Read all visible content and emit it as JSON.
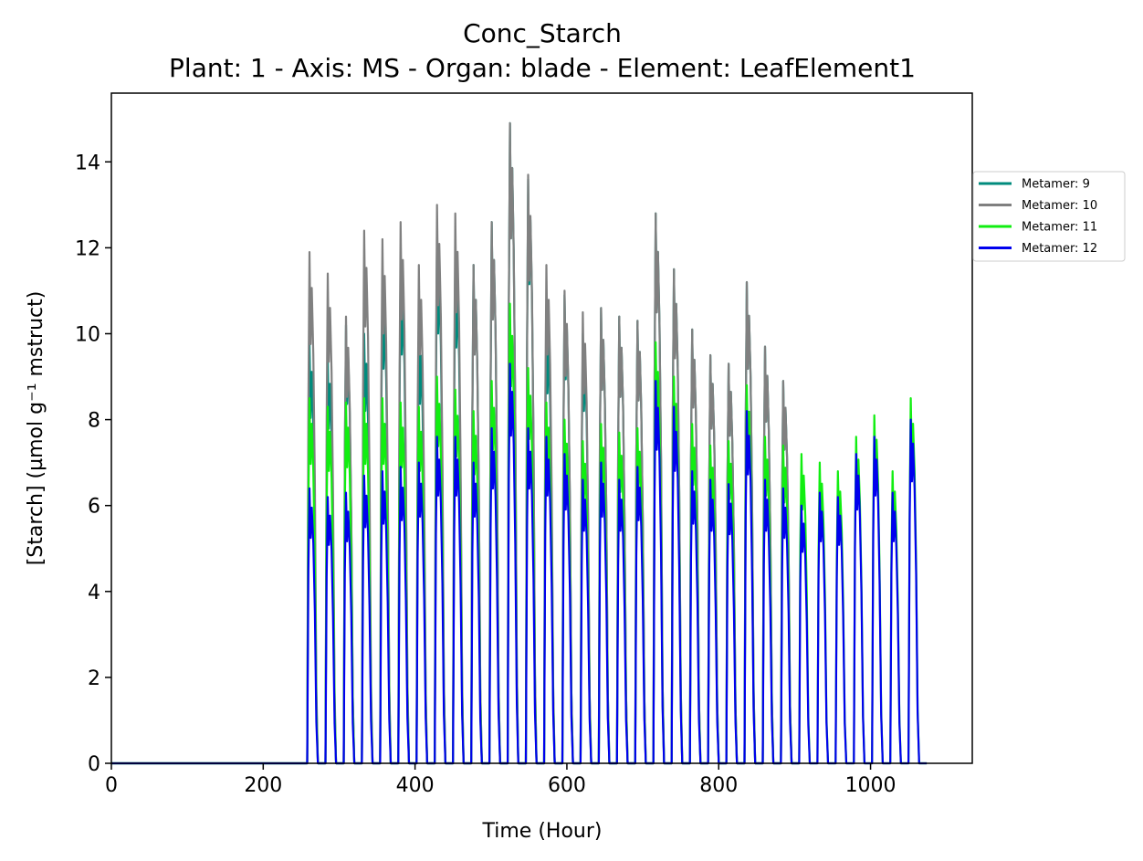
{
  "chart_data": {
    "type": "line",
    "title": "Conc_Starch",
    "subtitle": "Plant: 1 - Axis: MS - Organ: blade - Element: LeafElement1",
    "xlabel": "Time (Hour)",
    "ylabel": "[Starch] (µmol g⁻¹ mstruct)",
    "xlim": [
      0,
      1134
    ],
    "ylim": [
      0,
      15.6
    ],
    "xticks": [
      0,
      200,
      400,
      600,
      800,
      1000
    ],
    "yticks": [
      0,
      2,
      4,
      6,
      8,
      10,
      12,
      14
    ],
    "grid": false,
    "legend_position": "upper-right-outside",
    "cycle_start": 258,
    "cycle_period": 24,
    "series": [
      {
        "name": "Metamer: 9",
        "color": "#008b7d",
        "peaks": [
          9.8,
          9.5,
          10.2,
          10.0,
          11.2,
          11.6,
          10.2,
          12.2,
          11.8,
          11.6,
          12.6,
          14.9,
          13.6,
          10.5,
          10.9,
          10.0,
          10.6,
          10.4,
          10.3,
          12.8,
          11.5,
          10.1,
          9.5,
          9.3,
          11.2,
          9.7,
          8.9
        ]
      },
      {
        "name": "Metamer: 10",
        "color": "#808080",
        "peaks": [
          11.9,
          11.4,
          10.4,
          12.4,
          12.2,
          12.6,
          11.6,
          13.0,
          12.8,
          11.6,
          12.6,
          14.9,
          13.7,
          11.6,
          11.0,
          10.5,
          10.6,
          10.4,
          10.3,
          12.8,
          11.5,
          10.1,
          9.5,
          9.3,
          11.2,
          9.7,
          8.9
        ]
      },
      {
        "name": "Metamer: 11",
        "color": "#11ee11",
        "peaks": [
          8.5,
          8.3,
          8.4,
          8.5,
          8.5,
          8.4,
          8.3,
          9.0,
          8.7,
          8.2,
          8.9,
          10.7,
          9.2,
          8.4,
          8.0,
          7.5,
          7.9,
          7.7,
          7.8,
          9.8,
          9.0,
          7.9,
          7.4,
          7.5,
          8.8,
          7.6,
          7.4,
          7.2,
          7.0,
          6.8,
          7.6,
          8.1,
          6.8,
          8.5
        ]
      },
      {
        "name": "Metamer: 12",
        "color": "#0000ee",
        "peaks": [
          6.4,
          6.2,
          6.3,
          6.7,
          6.8,
          6.9,
          7.0,
          7.6,
          7.6,
          7.0,
          7.8,
          9.3,
          7.8,
          7.6,
          7.2,
          6.6,
          7.0,
          6.6,
          6.9,
          8.9,
          8.3,
          6.8,
          6.6,
          6.5,
          8.2,
          6.6,
          6.4,
          6.0,
          6.3,
          6.2,
          7.2,
          7.6,
          6.3,
          8.0
        ]
      }
    ]
  }
}
